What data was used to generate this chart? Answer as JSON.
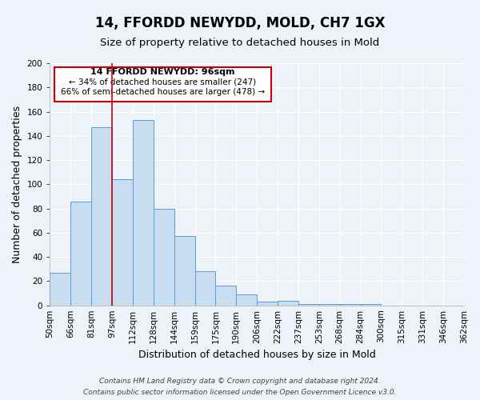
{
  "title": "14, FFORDD NEWYDD, MOLD, CH7 1GX",
  "subtitle": "Size of property relative to detached houses in Mold",
  "xlabel": "Distribution of detached houses by size in Mold",
  "ylabel": "Number of detached properties",
  "bar_values": [
    27,
    86,
    147,
    104,
    153,
    80,
    57,
    28,
    16,
    9,
    3,
    4,
    1,
    1,
    1,
    1,
    0,
    0,
    0,
    0
  ],
  "bin_labels": [
    "50sqm",
    "66sqm",
    "81sqm",
    "97sqm",
    "112sqm",
    "128sqm",
    "144sqm",
    "159sqm",
    "175sqm",
    "190sqm",
    "206sqm",
    "222sqm",
    "237sqm",
    "253sqm",
    "268sqm",
    "284sqm",
    "300sqm",
    "315sqm",
    "331sqm",
    "346sqm",
    "362sqm"
  ],
  "bar_color": "#c9ddf0",
  "bar_edge_color": "#5b9bd5",
  "vline_x_index": 3,
  "vline_color": "#cc0000",
  "ylim": [
    0,
    200
  ],
  "yticks": [
    0,
    20,
    40,
    60,
    80,
    100,
    120,
    140,
    160,
    180,
    200
  ],
  "annotation_title": "14 FFORDD NEWYDD: 96sqm",
  "annotation_line1": "← 34% of detached houses are smaller (247)",
  "annotation_line2": "66% of semi-detached houses are larger (478) →",
  "annotation_box_color": "#ffffff",
  "annotation_box_edge": "#cc0000",
  "footer1": "Contains HM Land Registry data © Crown copyright and database right 2024.",
  "footer2": "Contains public sector information licensed under the Open Government Licence v3.0.",
  "background_color": "#eef2f9",
  "grid_color": "#ffffff",
  "title_fontsize": 12,
  "subtitle_fontsize": 9.5,
  "axis_label_fontsize": 9,
  "tick_fontsize": 7.5,
  "footer_fontsize": 6.5
}
